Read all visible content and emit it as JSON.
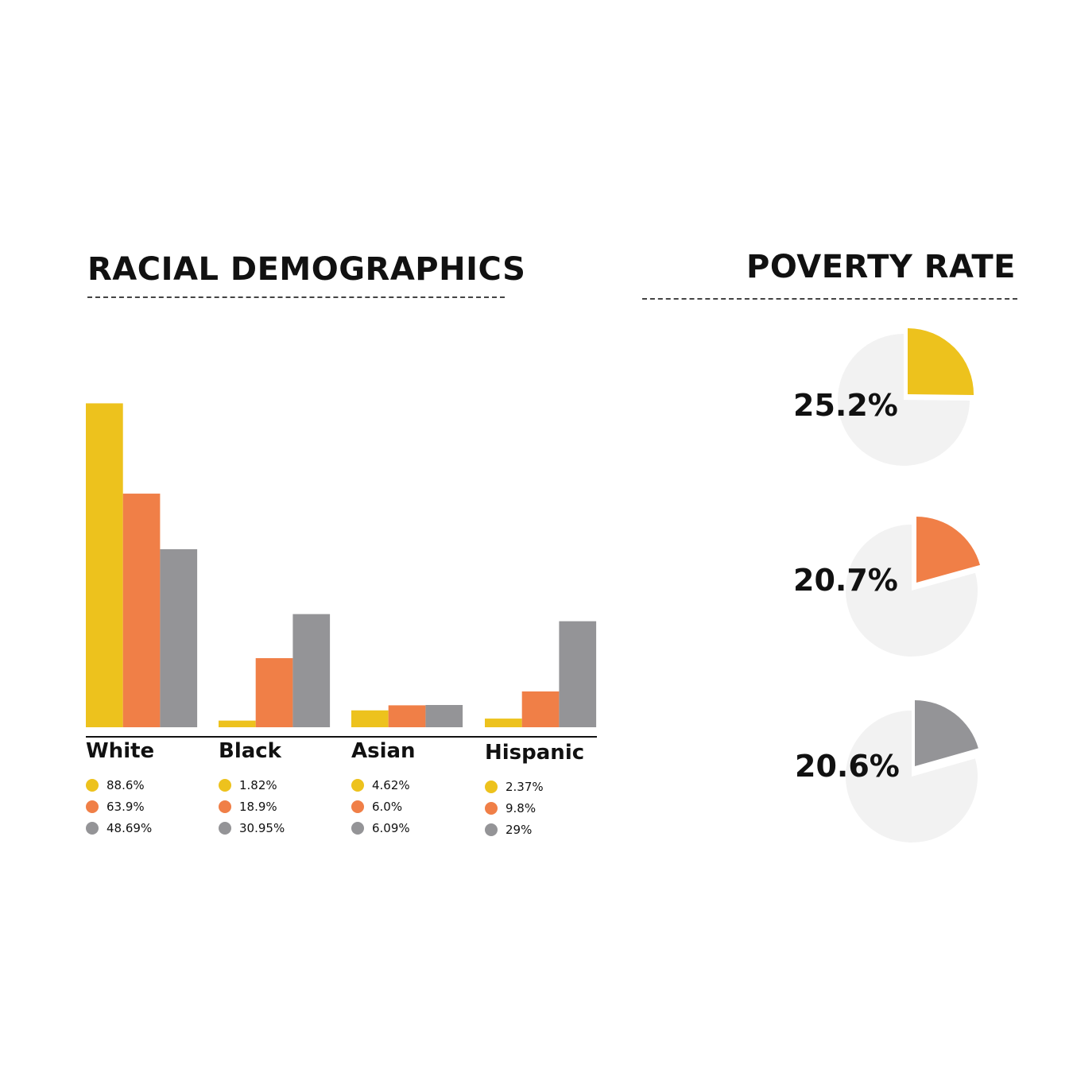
{
  "racial": {
    "title": "RACIAL DEMOGRAPHICS"
  },
  "poverty": {
    "title": "POVERTY RATE",
    "rates": [
      "25.2%",
      "20.7%",
      "20.6%"
    ]
  },
  "colors": {
    "yellow": "#EDC21D",
    "orange": "#F07F47",
    "gray": "#949497",
    "pie_background": "#F2F2F2"
  },
  "chart_data": [
    {
      "type": "bar",
      "title": "RACIAL DEMOGRAPHICS",
      "categories": [
        "White",
        "Black",
        "Asian",
        "Hispanic"
      ],
      "series": [
        {
          "color": "#EDC21D",
          "values": [
            88.6,
            1.82,
            4.62,
            2.37
          ],
          "labels": [
            "88.6%",
            "1.82%",
            "4.62%",
            "2.37%"
          ]
        },
        {
          "color": "#F07F47",
          "values": [
            63.9,
            18.9,
            6.0,
            9.8
          ],
          "labels": [
            "63.9%",
            "18.9%",
            "6.0%",
            "9.8%"
          ]
        },
        {
          "color": "#949497",
          "values": [
            48.69,
            30.95,
            6.09,
            29
          ],
          "labels": [
            "48.69%",
            "30.95%",
            "6.09%",
            "29%"
          ]
        }
      ],
      "grid": false
    },
    {
      "type": "pie",
      "title": "POVERTY RATE",
      "slices": [
        {
          "value": 25.2,
          "label": "25.2%",
          "color": "#EDC21D"
        },
        {
          "value": 20.7,
          "label": "20.7%",
          "color": "#F07F47"
        },
        {
          "value": 20.6,
          "label": "20.6%",
          "color": "#949497"
        }
      ]
    }
  ]
}
